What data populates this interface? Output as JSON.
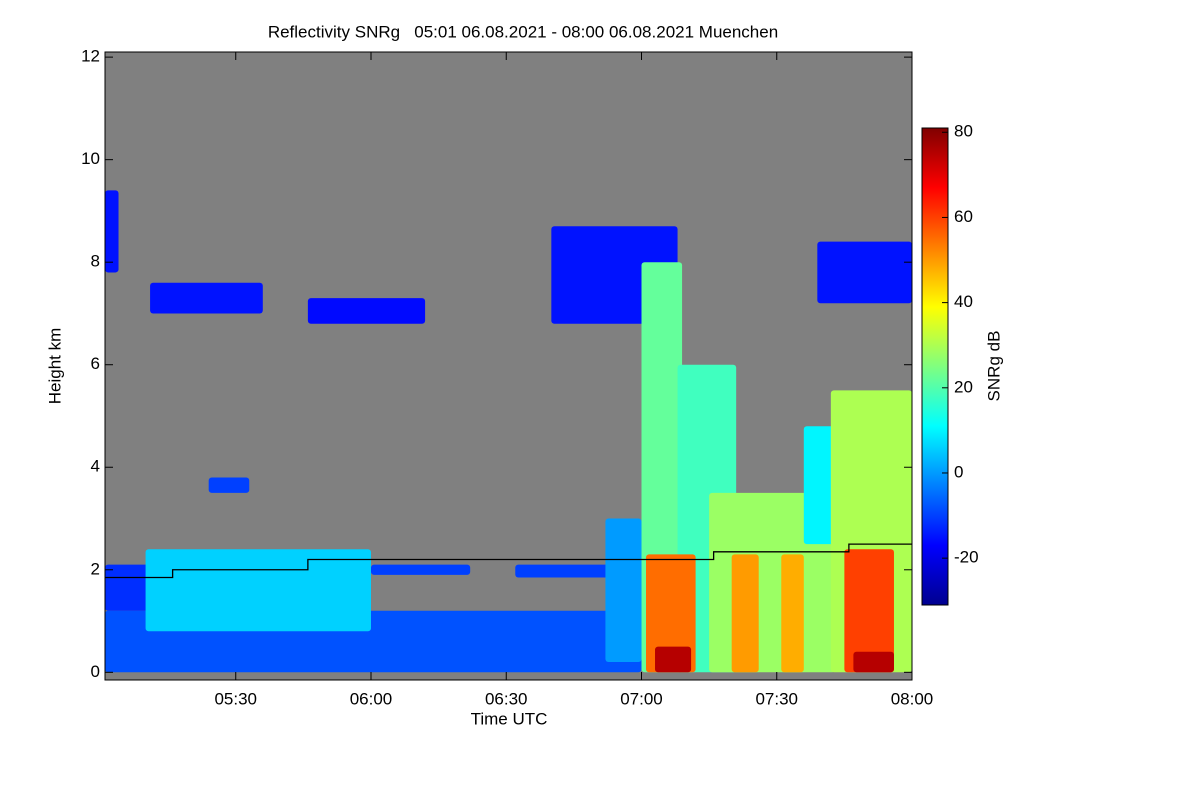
{
  "chart_data": {
    "type": "heatmap",
    "title": "Reflectivity SNRg   05:01 06.08.2021 - 08:00 06.08.2021 Muenchen",
    "xlabel": "Time UTC",
    "ylabel": "Height km",
    "colorbar_label": "SNRg dB",
    "background": "#808080",
    "xlim": [
      301,
      480
    ],
    "xticks": [
      {
        "value": 330,
        "label": "05:30"
      },
      {
        "value": 360,
        "label": "06:00"
      },
      {
        "value": 390,
        "label": "06:30"
      },
      {
        "value": 420,
        "label": "07:00"
      },
      {
        "value": 450,
        "label": "07:30"
      },
      {
        "value": 480,
        "label": "08:00"
      }
    ],
    "ylim": [
      -0.15,
      12.1
    ],
    "yticks": [
      0,
      2,
      4,
      6,
      8,
      10,
      12
    ],
    "clim": [
      -31,
      81
    ],
    "cticks": [
      -20,
      0,
      20,
      40,
      60,
      80
    ],
    "cells": [
      {
        "x": [
          301,
          420
        ],
        "y": [
          0,
          1.2
        ],
        "value": -8
      },
      {
        "x": [
          301,
          312
        ],
        "y": [
          1.2,
          2.1
        ],
        "value": -12
      },
      {
        "x": [
          301,
          304
        ],
        "y": [
          7.8,
          9.4
        ],
        "value": -15
      },
      {
        "x": [
          310,
          360
        ],
        "y": [
          0.8,
          2.4
        ],
        "value": 6
      },
      {
        "x": [
          360,
          382
        ],
        "y": [
          1.9,
          2.1
        ],
        "value": -10
      },
      {
        "x": [
          392,
          416
        ],
        "y": [
          1.85,
          2.1
        ],
        "value": -10
      },
      {
        "x": [
          324,
          333
        ],
        "y": [
          3.5,
          3.8
        ],
        "value": -10
      },
      {
        "x": [
          311,
          336
        ],
        "y": [
          7.0,
          7.6
        ],
        "value": -15
      },
      {
        "x": [
          346,
          372
        ],
        "y": [
          6.8,
          7.3
        ],
        "value": -16
      },
      {
        "x": [
          400,
          428
        ],
        "y": [
          6.8,
          8.7
        ],
        "value": -15
      },
      {
        "x": [
          459,
          480
        ],
        "y": [
          7.2,
          8.4
        ],
        "value": -15
      },
      {
        "x": [
          412,
          420
        ],
        "y": [
          0.2,
          3.0
        ],
        "value": 0
      },
      {
        "x": [
          420,
          429
        ],
        "y": [
          0,
          8.0
        ],
        "value": 22
      },
      {
        "x": [
          428,
          441
        ],
        "y": [
          0,
          6.0
        ],
        "value": 18
      },
      {
        "x": [
          435,
          463
        ],
        "y": [
          0,
          3.5
        ],
        "value": 28
      },
      {
        "x": [
          456,
          463
        ],
        "y": [
          2.5,
          4.8
        ],
        "value": 10
      },
      {
        "x": [
          462,
          480
        ],
        "y": [
          0,
          5.5
        ],
        "value": 30
      },
      {
        "x": [
          421,
          432
        ],
        "y": [
          0,
          2.3
        ],
        "value": 55
      },
      {
        "x": [
          440,
          446
        ],
        "y": [
          0,
          2.3
        ],
        "value": 50
      },
      {
        "x": [
          451,
          456
        ],
        "y": [
          0,
          2.3
        ],
        "value": 48
      },
      {
        "x": [
          465,
          476
        ],
        "y": [
          0,
          2.4
        ],
        "value": 60
      },
      {
        "x": [
          423,
          431
        ],
        "y": [
          0,
          0.5
        ],
        "value": 75
      },
      {
        "x": [
          467,
          476
        ],
        "y": [
          0,
          0.4
        ],
        "value": 75
      }
    ],
    "line": {
      "color": "#000000",
      "x": [
        301,
        316,
        316,
        346,
        346,
        436,
        436,
        466,
        466,
        480
      ],
      "y": [
        1.85,
        1.85,
        2.0,
        2.0,
        2.2,
        2.2,
        2.35,
        2.35,
        2.5,
        2.5
      ]
    }
  }
}
